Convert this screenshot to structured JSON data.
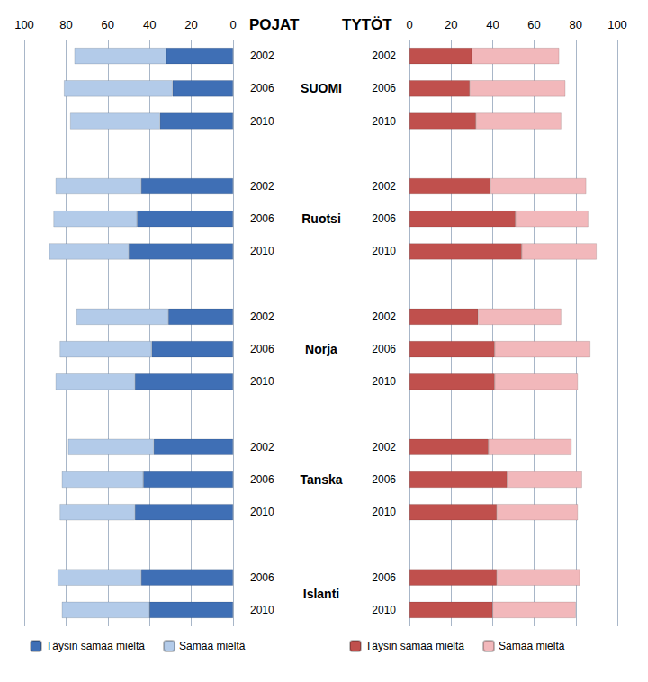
{
  "chart_data": [
    {
      "type": "bar",
      "orientation": "horizontal",
      "stacked": true,
      "title": "POJAT",
      "categories": [
        "2002",
        "2006",
        "2010",
        null,
        "2002",
        "2006",
        "2010",
        null,
        "2002",
        "2006",
        "2010",
        null,
        "2002",
        "2006",
        "2010",
        null,
        "2006",
        "2010"
      ],
      "series": [
        {
          "name": "Täysin samaa mieltä",
          "color": "#3f6fb5",
          "values": [
            32,
            29,
            35,
            null,
            44,
            46,
            50,
            null,
            31,
            39,
            47,
            null,
            38,
            43,
            47,
            null,
            44,
            40
          ]
        },
        {
          "name": "Samaa mieltä",
          "color": "#b3cbe9",
          "values": [
            44,
            52,
            43,
            null,
            41,
            40,
            38,
            null,
            44,
            44,
            38,
            null,
            41,
            39,
            36,
            null,
            40,
            42
          ]
        }
      ],
      "xlim": [
        100,
        0
      ],
      "xticks": [
        100,
        80,
        60,
        40,
        20,
        0
      ],
      "grid": true,
      "legend": "bottom"
    },
    {
      "type": "bar",
      "orientation": "horizontal",
      "stacked": true,
      "title": "TYTÖT",
      "categories": [
        "2002",
        "2006",
        "2010",
        null,
        "2002",
        "2006",
        "2010",
        null,
        "2002",
        "2006",
        "2010",
        null,
        "2002",
        "2006",
        "2010",
        null,
        "2006",
        "2010"
      ],
      "series": [
        {
          "name": "Täysin samaa mieltä",
          "color": "#c0504d",
          "values": [
            30,
            29,
            32,
            null,
            39,
            51,
            54,
            null,
            33,
            41,
            41,
            null,
            38,
            47,
            42,
            null,
            42,
            40
          ]
        },
        {
          "name": "Samaa mieltä",
          "color": "#f2b8bb",
          "values": [
            42,
            46,
            41,
            null,
            46,
            35,
            36,
            null,
            40,
            46,
            40,
            null,
            40,
            36,
            39,
            null,
            40,
            40
          ]
        }
      ],
      "xlim": [
        0,
        100
      ],
      "xticks": [
        0,
        20,
        40,
        60,
        80,
        100
      ],
      "grid": true,
      "legend": "bottom"
    }
  ],
  "row_groups": [
    "SUOMI",
    "Ruotsi",
    "Norja",
    "Tanska",
    "Islanti"
  ]
}
